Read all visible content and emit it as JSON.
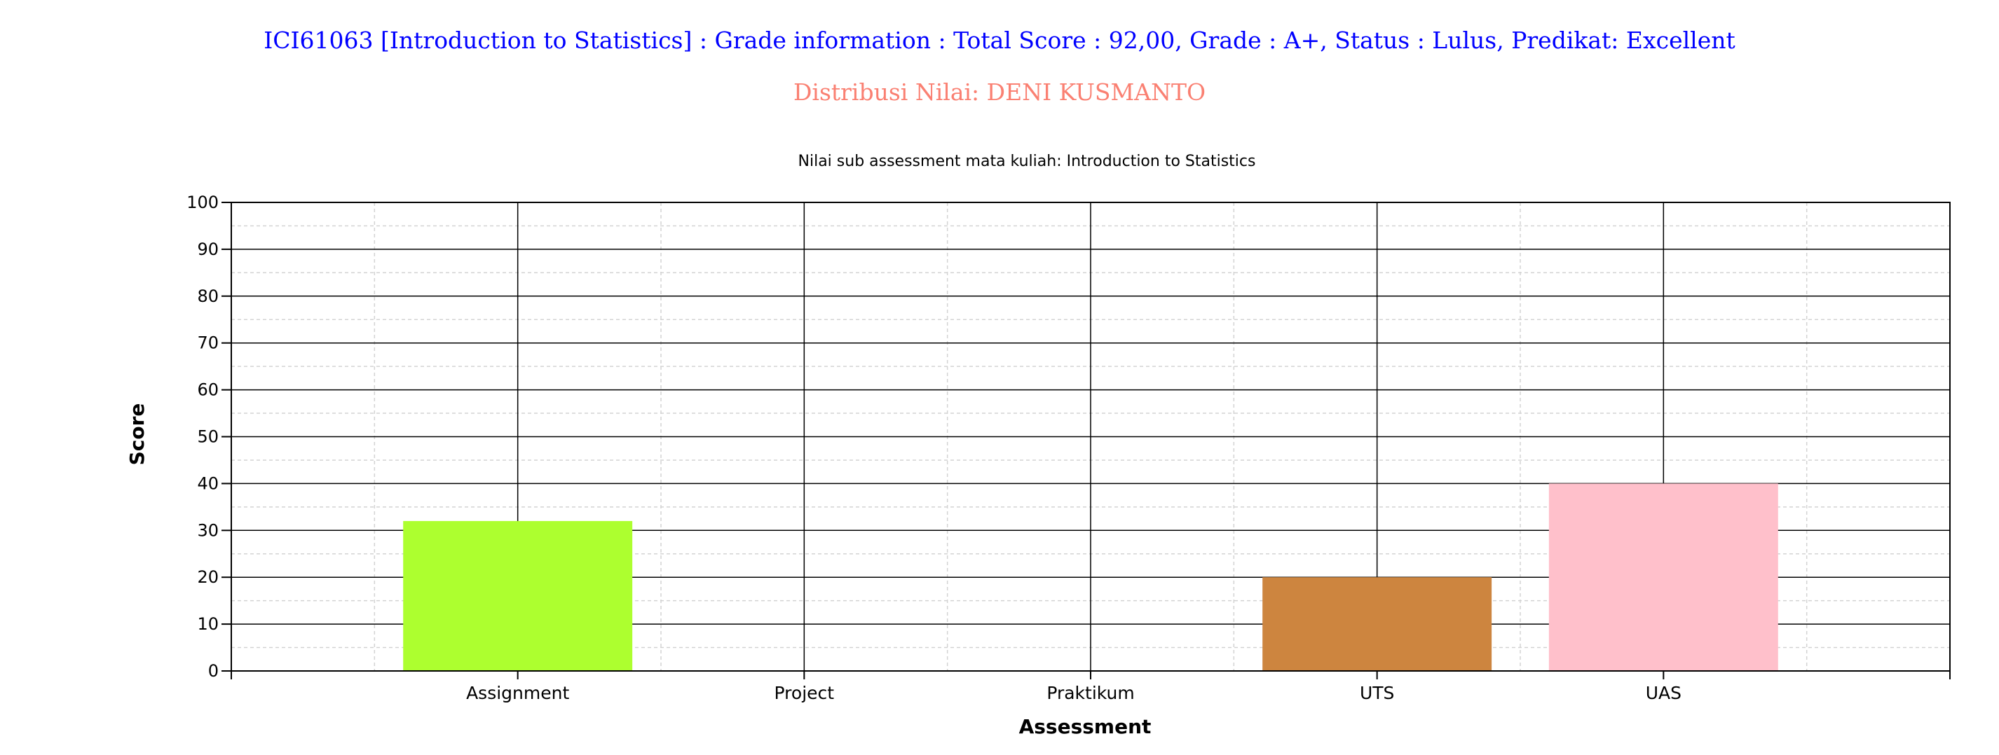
{
  "header": {
    "title": "ICI61063 [Introduction to Statistics] : Grade information : Total Score : 92,00, Grade : A+, Status : Lulus, Predikat: Excellent",
    "subtitle": "Distribusi Nilai: DENI KUSMANTO"
  },
  "chart_data": {
    "type": "bar",
    "title": "Nilai sub assessment mata kuliah: Introduction to Statistics",
    "xlabel": "Assessment",
    "ylabel": "Score",
    "categories": [
      "Assignment",
      "Project",
      "Praktikum",
      "UTS",
      "UAS"
    ],
    "values": [
      32,
      0,
      0,
      20,
      40
    ],
    "colors": [
      "#adff2f",
      "#adff2f",
      "#adff2f",
      "#cd853f",
      "#ffc0cb"
    ],
    "ylim": [
      0,
      100
    ],
    "yticks": [
      0,
      10,
      20,
      30,
      40,
      50,
      60,
      70,
      80,
      90,
      100
    ],
    "grid": true,
    "legend": "none"
  }
}
